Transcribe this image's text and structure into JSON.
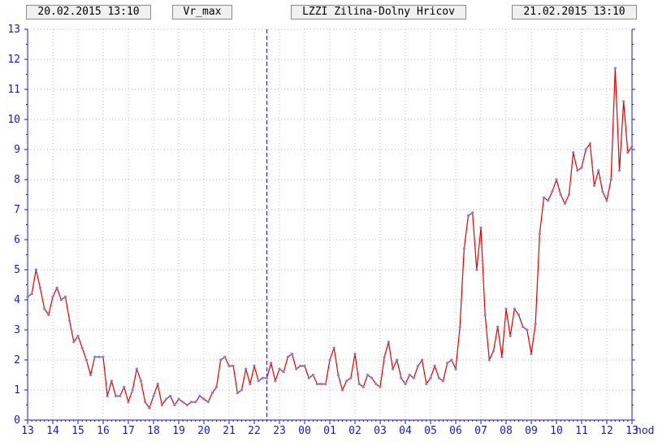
{
  "header": {
    "start_time": "20.02.2015 13:10",
    "variable": "Vr_max",
    "station": "LZZI Zilina-Dolny Hricov",
    "end_time": "21.02.2015 13:10"
  },
  "colors": {
    "line": "#e00000",
    "marker": "#8080e0",
    "grid": "#b8b8b8",
    "axis": "#1a1acc",
    "divider": "#1a1acc"
  },
  "chart_data": {
    "type": "line",
    "title": "",
    "xlabel": "",
    "x_unit_label": "hod",
    "ylabel": "",
    "ylim": [
      0,
      13
    ],
    "y_ticks": [
      "0",
      "1",
      "2",
      "3",
      "4",
      "5",
      "6",
      "7",
      "8",
      "9",
      "10",
      "11",
      "12",
      "13"
    ],
    "x_ticks": [
      "13",
      "14",
      "15",
      "16",
      "17",
      "18",
      "19",
      "20",
      "21",
      "22",
      "23",
      "00",
      "01",
      "02",
      "03",
      "04",
      "05",
      "06",
      "07",
      "08",
      "09",
      "10",
      "11",
      "12",
      "13"
    ],
    "midnight_divider_after_tick": "22",
    "grid": true,
    "interval_minutes": 10,
    "series": [
      {
        "values": [
          4.1,
          4.2,
          5.0,
          4.4,
          3.7,
          3.5,
          4.1,
          4.4,
          4.0,
          4.1,
          3.3,
          2.6,
          2.8,
          2.4,
          2.0,
          1.5,
          2.1,
          2.1,
          2.1,
          0.8,
          1.3,
          0.8,
          0.8,
          1.1,
          0.6,
          1.0,
          1.7,
          1.3,
          0.6,
          0.4,
          0.8,
          1.2,
          0.5,
          0.7,
          0.8,
          0.5,
          0.7,
          0.6,
          0.5,
          0.6,
          0.6,
          0.8,
          0.7,
          0.6,
          0.9,
          1.1,
          2.0,
          2.1,
          1.8,
          1.8,
          0.9,
          1.0,
          1.7,
          1.2,
          1.8,
          1.3,
          1.4,
          1.4,
          1.9,
          1.3,
          1.7,
          1.6,
          2.1,
          2.2,
          1.7,
          1.8,
          1.8,
          1.4,
          1.5,
          1.2,
          1.2,
          1.2,
          2.0,
          2.4,
          1.5,
          1.0,
          1.3,
          1.4,
          2.2,
          1.2,
          1.1,
          1.5,
          1.4,
          1.2,
          1.1,
          2.1,
          2.6,
          1.7,
          2.0,
          1.4,
          1.2,
          1.5,
          1.4,
          1.8,
          2.0,
          1.2,
          1.4,
          1.8,
          1.4,
          1.3,
          1.9,
          2.0,
          1.7,
          3.1,
          5.7,
          6.8,
          6.9,
          5.0,
          6.4,
          3.5,
          2.0,
          2.3,
          3.1,
          2.1,
          3.7,
          2.8,
          3.7,
          3.5,
          3.1,
          3.0,
          2.2,
          3.2,
          6.2,
          7.4,
          7.3,
          7.6,
          8.0,
          7.5,
          7.2,
          7.5,
          8.9,
          8.3,
          8.4,
          9.0,
          9.2,
          7.8,
          8.3,
          7.6,
          7.3,
          8.0,
          11.7,
          8.3,
          10.6,
          8.9,
          9.1
        ]
      }
    ]
  }
}
